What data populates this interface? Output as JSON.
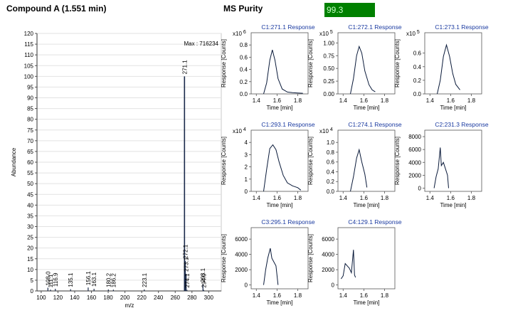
{
  "header": {
    "title": "Compound A (1.551 min)",
    "purity_label": "MS Purity",
    "purity_value": "99.3",
    "purity_color": "#008000"
  },
  "chart_data": [
    {
      "type": "bar",
      "title": "",
      "xlabel": "m/z",
      "ylabel": "Abundance",
      "max_label": "Max : 716234",
      "xlim": [
        95,
        315
      ],
      "ylim": [
        0,
        120
      ],
      "xticks": [
        100,
        120,
        140,
        160,
        180,
        200,
        220,
        240,
        260,
        280,
        300
      ],
      "yticks": [
        0,
        5,
        10,
        15,
        20,
        25,
        30,
        35,
        40,
        45,
        50,
        55,
        60,
        65,
        70,
        75,
        80,
        85,
        90,
        95,
        100,
        105,
        110,
        115,
        120
      ],
      "peaks": [
        {
          "mz": 108.0,
          "value": 1.5,
          "label": "108.0"
        },
        {
          "mz": 111.1,
          "value": 0.6,
          "label": "111.1"
        },
        {
          "mz": 116.9,
          "value": 1.0,
          "label": "116.9"
        },
        {
          "mz": 135.1,
          "value": 0.8,
          "label": "135.1"
        },
        {
          "mz": 156.1,
          "value": 1.6,
          "label": "156.1"
        },
        {
          "mz": 163.1,
          "value": 1.0,
          "label": "163.1"
        },
        {
          "mz": 180.2,
          "value": 0.7,
          "label": "180.2"
        },
        {
          "mz": 186.2,
          "value": 0.6,
          "label": "186.2"
        },
        {
          "mz": 223.1,
          "value": 0.7,
          "label": "223.1"
        },
        {
          "mz": 271.1,
          "value": 100,
          "label": "271.1"
        },
        {
          "mz": 272.1,
          "value": 14,
          "label": "272.1"
        },
        {
          "mz": 273.1,
          "value": 8,
          "label": "273.1"
        },
        {
          "mz": 274.1,
          "value": 0.5,
          "label": "274.1"
        },
        {
          "mz": 293.1,
          "value": 3,
          "label": "293.1"
        },
        {
          "mz": 294.0,
          "value": 0.5,
          "label": "294.0"
        }
      ]
    },
    {
      "type": "line",
      "title": "C1:271.1 Response",
      "ylabel": "Response [Counts]",
      "xlabel": "Time [min]",
      "multiplier": "x10",
      "exponent": "6",
      "xlim": [
        1.35,
        1.9
      ],
      "ylim": [
        0,
        1.0
      ],
      "xticks": [
        1.4,
        1.6,
        1.8
      ],
      "yticks": [
        0.0,
        0.2,
        0.4,
        0.6,
        0.8
      ],
      "x": [
        1.47,
        1.5,
        1.53,
        1.555,
        1.58,
        1.61,
        1.65,
        1.7,
        1.75,
        1.8,
        1.85
      ],
      "y": [
        0.0,
        0.18,
        0.55,
        0.72,
        0.55,
        0.25,
        0.08,
        0.03,
        0.02,
        0.015,
        0.01
      ]
    },
    {
      "type": "line",
      "title": "C1:272.1 Response",
      "ylabel": "Response [Counts]",
      "xlabel": "Time [min]",
      "multiplier": "x10",
      "exponent": "5",
      "xlim": [
        1.35,
        1.9
      ],
      "ylim": [
        0,
        1.2
      ],
      "xticks": [
        1.4,
        1.6,
        1.8
      ],
      "yticks": [
        0.0,
        0.25,
        0.5,
        0.75,
        1.0
      ],
      "x": [
        1.47,
        1.5,
        1.53,
        1.555,
        1.58,
        1.61,
        1.65,
        1.68,
        1.71
      ],
      "y": [
        0.0,
        0.3,
        0.75,
        0.93,
        0.8,
        0.45,
        0.18,
        0.08,
        0.04
      ]
    },
    {
      "type": "line",
      "title": "C1:273.1 Response",
      "ylabel": "Response [Counts]",
      "xlabel": "Time [min]",
      "multiplier": "x10",
      "exponent": "5",
      "xlim": [
        1.35,
        1.9
      ],
      "ylim": [
        0,
        0.9
      ],
      "xticks": [
        1.4,
        1.6,
        1.8
      ],
      "yticks": [
        0.0,
        0.2,
        0.4,
        0.6
      ],
      "x": [
        1.47,
        1.5,
        1.53,
        1.56,
        1.59,
        1.62,
        1.65,
        1.69
      ],
      "y": [
        0.0,
        0.2,
        0.55,
        0.72,
        0.55,
        0.3,
        0.14,
        0.06
      ]
    },
    {
      "type": "line",
      "title": "C1:293.1 Response",
      "ylabel": "Response [Counts]",
      "xlabel": "Time [min]",
      "multiplier": "x10",
      "exponent": "4",
      "xlim": [
        1.35,
        1.9
      ],
      "ylim": [
        0,
        5
      ],
      "xticks": [
        1.4,
        1.6,
        1.8
      ],
      "yticks": [
        0,
        1,
        2,
        3,
        4
      ],
      "x": [
        1.47,
        1.5,
        1.53,
        1.56,
        1.59,
        1.62,
        1.66,
        1.7,
        1.75,
        1.8,
        1.83
      ],
      "y": [
        0.0,
        1.8,
        3.5,
        3.8,
        3.4,
        2.4,
        1.3,
        0.7,
        0.45,
        0.3,
        0.1
      ]
    },
    {
      "type": "line",
      "title": "C1:274.1 Response",
      "ylabel": "Response [Counts]",
      "xlabel": "Time [min]",
      "multiplier": "x10",
      "exponent": "4",
      "xlim": [
        1.35,
        1.9
      ],
      "ylim": [
        0,
        1.25
      ],
      "xticks": [
        1.4,
        1.6,
        1.8
      ],
      "yticks": [
        0.0,
        0.2,
        0.4,
        0.6,
        0.8,
        1.0
      ],
      "x": [
        1.47,
        1.5,
        1.53,
        1.555,
        1.58,
        1.61,
        1.63
      ],
      "y": [
        0.0,
        0.3,
        0.68,
        0.85,
        0.6,
        0.35,
        0.08
      ]
    },
    {
      "type": "line",
      "title": "C2:231.3 Response",
      "ylabel": "Response [Counts]",
      "xlabel": "Time [min]",
      "xlim": [
        1.35,
        1.9
      ],
      "ylim": [
        -500,
        9000
      ],
      "xticks": [
        1.4,
        1.6,
        1.8
      ],
      "yticks": [
        0,
        2000,
        4000,
        6000,
        8000
      ],
      "x": [
        1.44,
        1.46,
        1.48,
        1.5,
        1.51,
        1.53,
        1.55,
        1.57,
        1.58
      ],
      "y": [
        0,
        1800,
        3000,
        6300,
        3500,
        4000,
        3000,
        2000,
        0
      ]
    },
    {
      "type": "line",
      "title": "C3:295.1 Response",
      "ylabel": "Response [Counts]",
      "xlabel": "Time [min]",
      "xlim": [
        1.35,
        1.9
      ],
      "ylim": [
        -500,
        7500
      ],
      "xticks": [
        1.4,
        1.6,
        1.8
      ],
      "yticks": [
        0,
        2000,
        4000,
        6000
      ],
      "x": [
        1.47,
        1.49,
        1.51,
        1.535,
        1.55,
        1.57,
        1.59,
        1.61
      ],
      "y": [
        0,
        2000,
        3500,
        4800,
        3500,
        3000,
        2500,
        0
      ]
    },
    {
      "type": "line",
      "title": "C4:129.1 Response",
      "ylabel": "Response [Counts]",
      "xlabel": "Time [min]",
      "xlim": [
        1.35,
        1.9
      ],
      "ylim": [
        -500,
        7500
      ],
      "xticks": [
        1.4,
        1.6,
        1.8
      ],
      "yticks": [
        0,
        2000,
        4000,
        6000
      ],
      "x": [
        1.38,
        1.4,
        1.42,
        1.44,
        1.46,
        1.48,
        1.5,
        1.51,
        1.52
      ],
      "y": [
        800,
        1200,
        2800,
        2500,
        2200,
        1600,
        4600,
        1300,
        1000
      ]
    }
  ]
}
